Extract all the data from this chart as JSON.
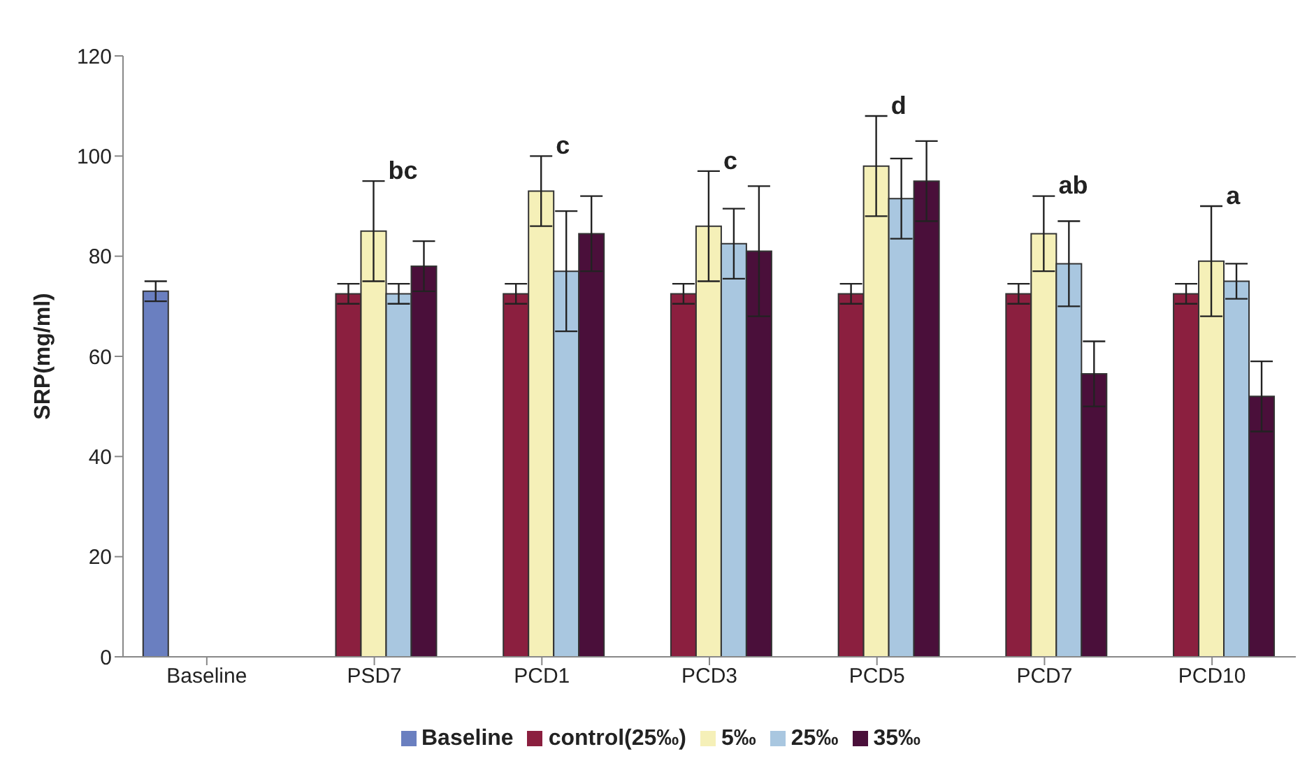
{
  "chart_data": {
    "type": "bar",
    "ylabel": "SRP(mg/ml)",
    "categories": [
      "Baseline",
      "PSD7",
      "PCD1",
      "PCD3",
      "PCD5",
      "PCD7",
      "PCD10"
    ],
    "series": [
      {
        "name": "Baseline",
        "color": "#6a7fc0",
        "values": [
          73,
          null,
          null,
          null,
          null,
          null,
          null
        ],
        "errors": [
          2,
          null,
          null,
          null,
          null,
          null,
          null
        ]
      },
      {
        "name": "control(25‰)",
        "color": "#8b1f3f",
        "values": [
          null,
          72.5,
          72.5,
          72.5,
          72.5,
          72.5,
          72.5
        ],
        "errors": [
          null,
          2,
          2,
          2,
          2,
          2,
          2
        ]
      },
      {
        "name": "5‰",
        "color": "#f5f0b8",
        "values": [
          null,
          85,
          93,
          86,
          98,
          84.5,
          79
        ],
        "errors": [
          null,
          10,
          7,
          11,
          10,
          7.5,
          11
        ]
      },
      {
        "name": "25‰",
        "color": "#a9c7e0",
        "values": [
          null,
          72.5,
          77,
          82.5,
          91.5,
          78.5,
          75
        ],
        "errors": [
          null,
          2,
          12,
          7,
          8,
          8.5,
          3.5
        ]
      },
      {
        "name": "35‰",
        "color": "#4a0f3a",
        "values": [
          null,
          78,
          84.5,
          81,
          95,
          56.5,
          52
        ],
        "errors": [
          null,
          5,
          7.5,
          13,
          8,
          6.5,
          7
        ]
      }
    ],
    "ylim": [
      0,
      120
    ],
    "yticks": [
      0,
      20,
      40,
      60,
      80,
      100,
      120
    ],
    "legend": "bottom",
    "annotations": [
      {
        "text": "bc",
        "x": "PSD7",
        "y": 95
      },
      {
        "text": "c",
        "x": "PCD1",
        "y": 100
      },
      {
        "text": "c",
        "x": "PCD3",
        "y": 97
      },
      {
        "text": "d",
        "x": "PCD5",
        "y": 108
      },
      {
        "text": "ab",
        "x": "PCD7",
        "y": 92
      },
      {
        "text": "a",
        "x": "PCD10",
        "y": 90
      }
    ]
  }
}
